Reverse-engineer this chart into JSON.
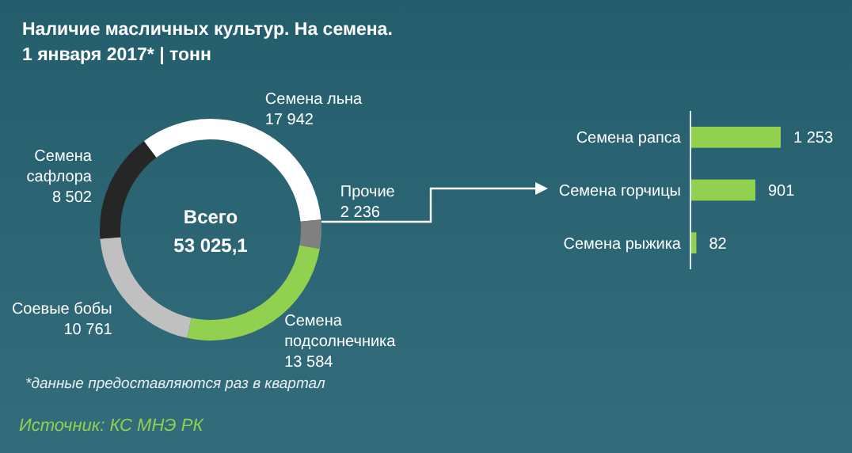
{
  "chart_data": [
    {
      "type": "donut",
      "title": "Наличие масличных культур. На семена.",
      "subtitle": "1 января 2017* | тонн",
      "categories": [
        "Семена льна",
        "Прочие",
        "Семена подсолнечника",
        "Соевые бобы",
        "Семена сафлора"
      ],
      "values": [
        17942,
        2236,
        13584,
        10761,
        8502
      ],
      "colors": [
        "#ffffff",
        "#808080",
        "#92d050",
        "#c0c0c0",
        "#262626"
      ],
      "value_labels": [
        "17 942",
        "2 236",
        "13 584",
        "10 761",
        "8 502"
      ],
      "annotations": [
        "Всего\n53 025,1",
        "*данные предоставляются раз в квартал",
        "Источник: КС МНЭ РК"
      ]
    },
    {
      "type": "bar",
      "orientation": "horizontal",
      "relative": false,
      "categories": [
        "Семена рапса",
        "Семена горчицы",
        "Семена рыжика"
      ],
      "values": [
        1253,
        901,
        82
      ],
      "color": "#92d050",
      "value_labels": [
        "1 253",
        "901",
        "82"
      ]
    }
  ]
}
